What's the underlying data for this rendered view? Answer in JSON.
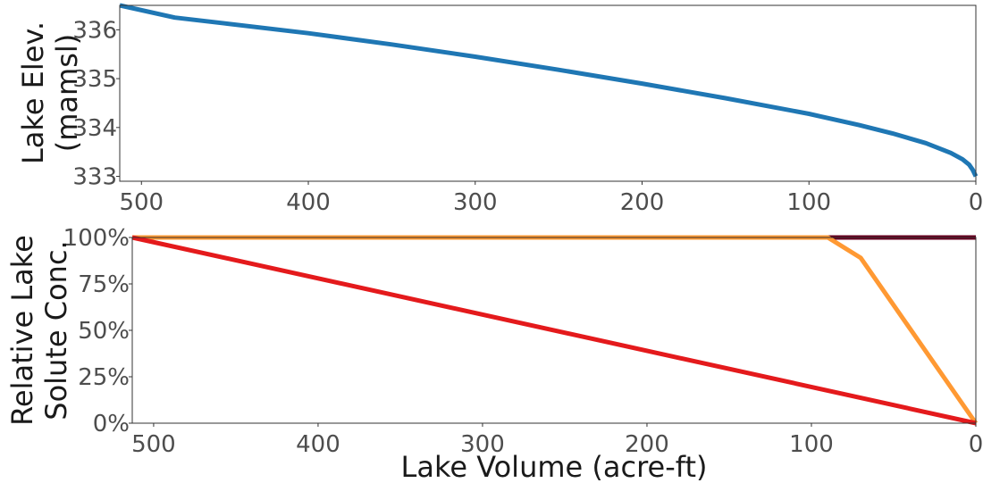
{
  "chart_data": [
    {
      "type": "line",
      "ylabel_lines": [
        "Lake Elev.",
        "(mamsl)"
      ],
      "xlim": [
        513,
        0
      ],
      "ylim": [
        332.9,
        336.5
      ],
      "xticks": [
        500,
        400,
        300,
        200,
        100,
        0
      ],
      "yticks": [
        333,
        334,
        335,
        336
      ],
      "ytick_labels": [
        "333",
        "334",
        "335",
        "336"
      ],
      "series": [
        {
          "color": "#1f77b4",
          "x": [
            513,
            480,
            450,
            400,
            350,
            300,
            250,
            200,
            150,
            100,
            70,
            50,
            30,
            15,
            8,
            4,
            2,
            0
          ],
          "y": [
            336.5,
            336.25,
            336.13,
            335.93,
            335.7,
            335.45,
            335.18,
            334.9,
            334.6,
            334.28,
            334.05,
            333.88,
            333.68,
            333.48,
            333.35,
            333.24,
            333.14,
            333.0
          ]
        }
      ]
    },
    {
      "type": "line",
      "ylabel_lines": [
        "Relative Lake",
        "Solute Conc."
      ],
      "xlabel": "Lake Volume (acre-ft)",
      "xlim": [
        513,
        0
      ],
      "ylim": [
        0,
        100
      ],
      "xticks": [
        500,
        400,
        300,
        200,
        100,
        0
      ],
      "yticks": [
        0,
        25,
        50,
        75,
        100
      ],
      "ytick_labels": [
        "0%",
        "25%",
        "50%",
        "75%",
        "100%"
      ],
      "series": [
        {
          "color": "#67001f",
          "x": [
            513,
            0
          ],
          "y": [
            100,
            100
          ]
        },
        {
          "color": "#ff9933",
          "x": [
            513,
            90,
            70,
            0
          ],
          "y": [
            100,
            100,
            89,
            0
          ]
        },
        {
          "color": "#e41a1c",
          "x": [
            513,
            0
          ],
          "y": [
            100,
            0
          ]
        }
      ]
    }
  ]
}
